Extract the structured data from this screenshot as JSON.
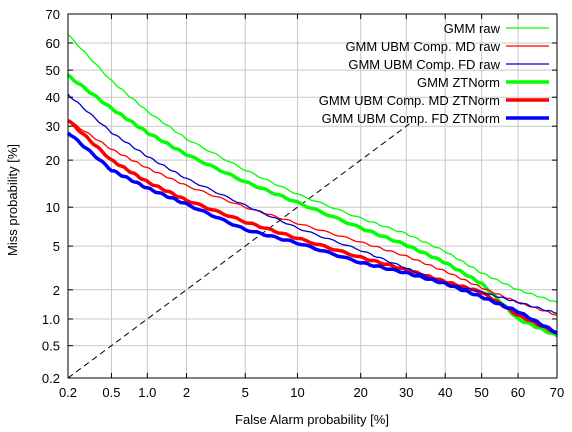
{
  "chart_data": {
    "type": "line",
    "subtype": "DET curve",
    "xlabel": "False Alarm probability [%]",
    "ylabel": "Miss probability [%]",
    "xscale": "probit",
    "yscale": "probit",
    "xlim": [
      0.2,
      70
    ],
    "ylim": [
      0.2,
      70
    ],
    "x_ticks": [
      0.2,
      0.5,
      1.0,
      2,
      5,
      10,
      20,
      30,
      40,
      50,
      60,
      70
    ],
    "x_tick_labels": [
      "0.2",
      "0.5",
      "1.0",
      "2",
      "5",
      "10",
      "20",
      "30",
      "40",
      "50",
      "60",
      "70"
    ],
    "y_ticks": [
      0.2,
      0.5,
      1.0,
      2,
      5,
      10,
      20,
      30,
      40,
      50,
      60,
      70
    ],
    "y_tick_labels": [
      "0.2",
      "0.5",
      "1.0",
      "2",
      "5",
      "10",
      "20",
      "30",
      "40",
      "50",
      "60",
      "70"
    ],
    "grid": true,
    "legend_position": "top-right",
    "reference_line": "dashed diagonal (equal error rate line)",
    "series": [
      {
        "name": "GMM raw",
        "color": "#00ff00",
        "width": "thin",
        "points": [
          [
            0.2,
            63
          ],
          [
            0.5,
            46
          ],
          [
            1.0,
            35
          ],
          [
            2,
            26
          ],
          [
            5,
            17.5
          ],
          [
            10,
            12.3
          ],
          [
            20,
            8.3
          ],
          [
            30,
            6.3
          ],
          [
            40,
            4.5
          ],
          [
            50,
            2.9
          ],
          [
            60,
            2.0
          ],
          [
            70,
            1.5
          ]
        ]
      },
      {
        "name": "GMM UBM Comp. MD raw",
        "color": "#ff0000",
        "width": "thin",
        "points": [
          [
            0.2,
            32
          ],
          [
            0.5,
            23
          ],
          [
            1.0,
            18
          ],
          [
            2,
            14
          ],
          [
            5,
            10
          ],
          [
            10,
            7.6
          ],
          [
            20,
            5.4
          ],
          [
            30,
            4.1
          ],
          [
            40,
            3.0
          ],
          [
            50,
            2.1
          ],
          [
            60,
            1.5
          ],
          [
            70,
            1.1
          ]
        ]
      },
      {
        "name": "GMM UBM Comp. FD raw",
        "color": "#0000cc",
        "width": "thin",
        "points": [
          [
            0.2,
            41
          ],
          [
            0.5,
            28
          ],
          [
            1.0,
            21
          ],
          [
            2,
            15.5
          ],
          [
            5,
            10.3
          ],
          [
            10,
            7.0
          ],
          [
            20,
            4.6
          ],
          [
            30,
            3.2
          ],
          [
            40,
            2.3
          ],
          [
            50,
            1.9
          ],
          [
            60,
            1.5
          ],
          [
            70,
            1.15
          ]
        ]
      },
      {
        "name": "GMM ZTNorm",
        "color": "#00ff00",
        "width": "thick",
        "points": [
          [
            0.2,
            48
          ],
          [
            0.5,
            36
          ],
          [
            1.0,
            28
          ],
          [
            2,
            21.5
          ],
          [
            5,
            14.8
          ],
          [
            10,
            10.8
          ],
          [
            20,
            7.0
          ],
          [
            30,
            5.1
          ],
          [
            40,
            3.6
          ],
          [
            50,
            2.3
          ],
          [
            60,
            1.0
          ],
          [
            70,
            0.65
          ]
        ]
      },
      {
        "name": "GMM UBM Comp. MD ZTNorm",
        "color": "#ff0000",
        "width": "thick",
        "points": [
          [
            0.2,
            32
          ],
          [
            0.5,
            20
          ],
          [
            1.0,
            14.8
          ],
          [
            2,
            11.2
          ],
          [
            5,
            7.8
          ],
          [
            10,
            5.8
          ],
          [
            20,
            4.0
          ],
          [
            30,
            3.1
          ],
          [
            40,
            2.4
          ],
          [
            50,
            1.9
          ],
          [
            60,
            1.1
          ],
          [
            70,
            0.7
          ]
        ]
      },
      {
        "name": "GMM UBM Comp. FD ZTNorm",
        "color": "#0000ff",
        "width": "thick",
        "points": [
          [
            0.2,
            28
          ],
          [
            0.5,
            17.5
          ],
          [
            1.0,
            13.5
          ],
          [
            2,
            10.5
          ],
          [
            5,
            6.8
          ],
          [
            10,
            5.3
          ],
          [
            20,
            3.6
          ],
          [
            30,
            2.9
          ],
          [
            40,
            2.3
          ],
          [
            50,
            1.7
          ],
          [
            60,
            1.2
          ],
          [
            70,
            0.7
          ]
        ]
      }
    ]
  }
}
